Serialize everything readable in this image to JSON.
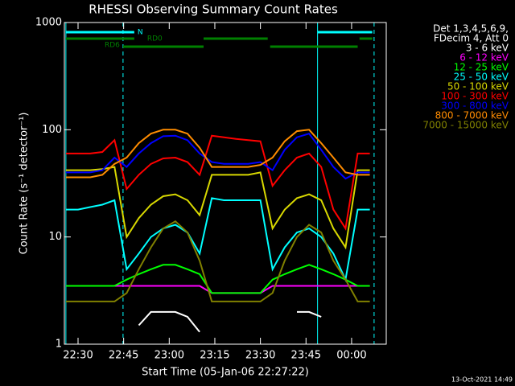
{
  "chart_data": {
    "type": "line",
    "title": "RHESSI Observing Summary Count Rates",
    "xlabel": "Start Time (05-Jan-06 22:27:22)",
    "ylabel": "Count Rate (s⁻¹ detector⁻¹)",
    "legend_header": [
      "Det 1,3,4,5,6,9,",
      "FDecim 4, Att 0"
    ],
    "footer": "13-Oct-2021 14:49",
    "log_y": true,
    "xlim": [
      25.5,
      131.4
    ],
    "ylim": [
      1,
      1000
    ],
    "xticks": [
      {
        "value": 30,
        "label": "22:30"
      },
      {
        "value": 45,
        "label": "22:45"
      },
      {
        "value": 60,
        "label": "23:00"
      },
      {
        "value": 75,
        "label": "23:15"
      },
      {
        "value": 90,
        "label": "23:30"
      },
      {
        "value": 105,
        "label": "23:45"
      },
      {
        "value": 120,
        "label": "00:00"
      }
    ],
    "yticks": [
      1,
      10,
      100,
      1000
    ],
    "x": [
      26,
      30,
      34,
      38,
      42,
      46,
      50,
      54,
      58,
      62,
      66,
      70,
      74,
      78,
      82,
      86,
      90,
      94,
      98,
      102,
      106,
      110,
      114,
      118,
      122,
      126
    ],
    "series": [
      {
        "name": "3 - 6 keV",
        "color": "#ffffff",
        "values": [
          null,
          null,
          null,
          null,
          null,
          null,
          1.5,
          2,
          2,
          2,
          1.8,
          1.3,
          null,
          null,
          null,
          null,
          null,
          null,
          null,
          2,
          2,
          1.8,
          null,
          null,
          null,
          null
        ]
      },
      {
        "name": "6 - 12 keV",
        "color": "#ff00ff",
        "values": [
          3.5,
          3.5,
          3.5,
          3.5,
          3.5,
          3.5,
          3.5,
          3.5,
          3.5,
          3.5,
          3.5,
          3.5,
          3,
          3,
          3,
          3,
          3,
          3.5,
          3.5,
          3.5,
          3.5,
          3.5,
          3.5,
          3.5,
          3.5,
          3.5
        ]
      },
      {
        "name": "12 - 25 keV",
        "color": "#00ff00",
        "values": [
          3.5,
          3.5,
          3.5,
          3.5,
          3.5,
          4,
          4.5,
          5,
          5.5,
          5.5,
          5,
          4.5,
          3,
          3,
          3,
          3,
          3,
          4,
          4.5,
          5,
          5.5,
          5,
          4.5,
          4,
          3.5,
          3.5
        ]
      },
      {
        "name": "25 - 50 keV",
        "color": "#00ffff",
        "values": [
          18,
          18,
          19,
          20,
          22,
          5,
          7,
          10,
          12,
          13,
          11,
          7,
          23,
          22,
          22,
          22,
          22,
          5,
          8,
          11,
          12,
          10,
          7,
          4,
          18,
          18
        ]
      },
      {
        "name": "50 - 100 keV",
        "color": "#d8d800",
        "values": [
          42,
          42,
          42,
          43,
          45,
          10,
          15,
          20,
          24,
          25,
          22,
          16,
          38,
          38,
          38,
          38,
          40,
          12,
          18,
          23,
          25,
          22,
          12,
          8,
          42,
          42
        ]
      },
      {
        "name": "100 - 300 keV",
        "color": "#ff0000",
        "values": [
          60,
          60,
          60,
          62,
          80,
          28,
          38,
          48,
          54,
          55,
          50,
          38,
          88,
          85,
          82,
          80,
          78,
          30,
          42,
          55,
          60,
          45,
          18,
          12,
          60,
          60
        ]
      },
      {
        "name": "300 - 800 keV",
        "color": "#0000ff",
        "values": [
          40,
          40,
          40,
          42,
          55,
          45,
          60,
          75,
          87,
          88,
          80,
          60,
          50,
          48,
          48,
          48,
          50,
          42,
          65,
          85,
          92,
          65,
          45,
          35,
          40,
          40
        ]
      },
      {
        "name": "800 - 7000 keV",
        "color": "#ff8c00",
        "values": [
          36,
          36,
          36,
          38,
          48,
          55,
          75,
          92,
          100,
          100,
          92,
          68,
          45,
          45,
          45,
          45,
          47,
          55,
          78,
          97,
          100,
          75,
          55,
          40,
          38,
          38
        ]
      },
      {
        "name": "7000 - 15000 keV",
        "color": "#808000",
        "values": [
          2.5,
          2.5,
          2.5,
          2.5,
          2.5,
          3,
          5,
          8,
          12,
          14,
          11,
          6,
          2.5,
          2.5,
          2.5,
          2.5,
          2.5,
          3,
          6,
          10,
          13,
          11,
          6,
          4,
          2.5,
          2.5
        ]
      }
    ],
    "flags": [
      {
        "label": "N",
        "color": "#00ffff",
        "segments": [
          [
            26,
            48.5
          ],
          [
            108.8,
            126.8
          ]
        ]
      },
      {
        "label": "RD0",
        "color": "#008000",
        "segments": [
          [
            26,
            48.5
          ],
          [
            71.3,
            92.4
          ],
          [
            122.6,
            126.8
          ]
        ]
      },
      {
        "label": "RD6",
        "color": "#008000",
        "segments": [
          [
            44.8,
            71.3
          ],
          [
            93.2,
            122
          ]
        ]
      }
    ],
    "vlines": [
      {
        "x": 26,
        "color": "#00ffff",
        "dashed": false
      },
      {
        "x": 44.8,
        "color": "#00ffff",
        "dashed": true
      },
      {
        "x": 108.8,
        "color": "#00ffff",
        "dashed": false
      },
      {
        "x": 127.4,
        "color": "#00ffff",
        "dashed": true
      }
    ]
  }
}
